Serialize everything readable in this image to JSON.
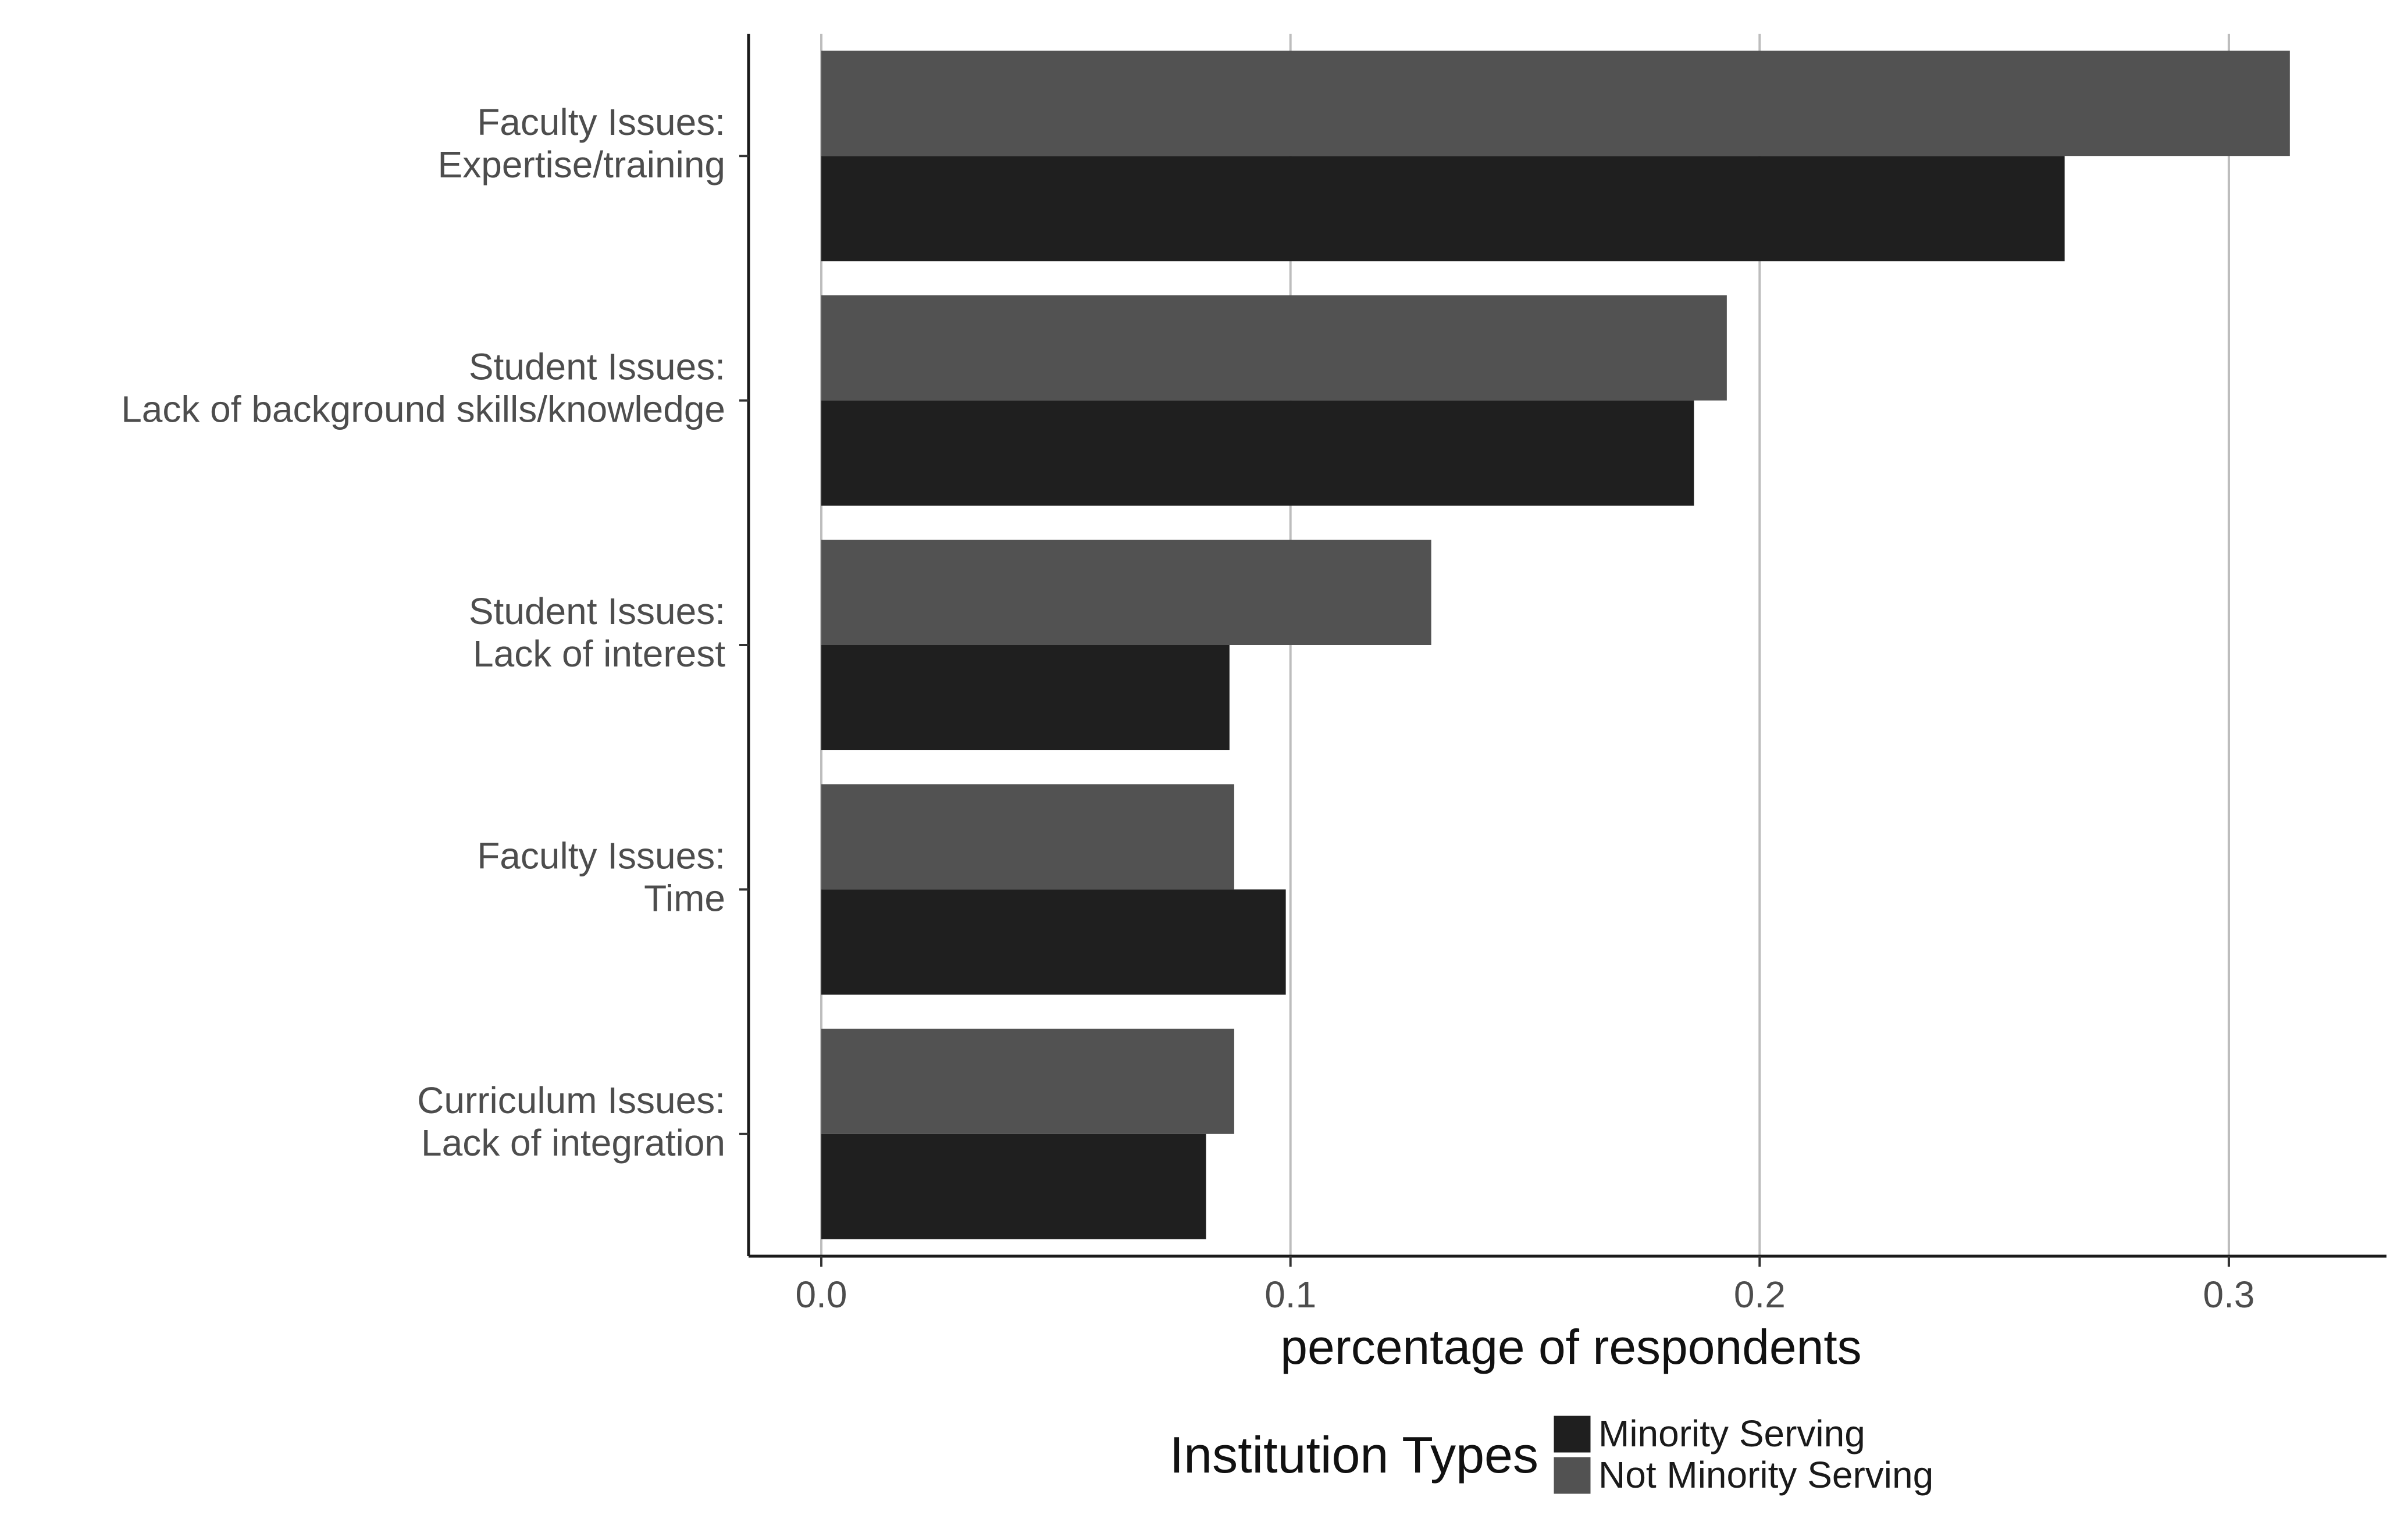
{
  "chart_data": {
    "type": "bar",
    "orientation": "horizontal",
    "title": "",
    "xlabel": "percentage of respondents",
    "ylabel": "",
    "xlim": [
      -0.0155,
      0.3336
    ],
    "xticks": [
      "0.0",
      "0.1",
      "0.2",
      "0.3"
    ],
    "xtick_values": [
      0.0,
      0.1,
      0.2,
      0.3
    ],
    "grid": "vertical major lines",
    "categories": [
      [
        "Faculty Issues:",
        "Expertise/training"
      ],
      [
        "Student Issues:",
        "Lack of background skills/knowledge"
      ],
      [
        "Student Issues:",
        "Lack of interest"
      ],
      [
        "Faculty Issues:",
        "Time"
      ],
      [
        "Curriculum Issues:",
        "Lack of integration"
      ]
    ],
    "series": [
      {
        "name": "Minority Serving",
        "color": "#1f1f1f",
        "values": [
          0.265,
          0.186,
          0.087,
          0.099,
          0.082
        ]
      },
      {
        "name": "Not Minority Serving",
        "color": "#525252",
        "values": [
          0.313,
          0.193,
          0.13,
          0.088,
          0.088
        ]
      }
    ],
    "legend": {
      "title": "Institution Types",
      "position": "bottom"
    }
  }
}
